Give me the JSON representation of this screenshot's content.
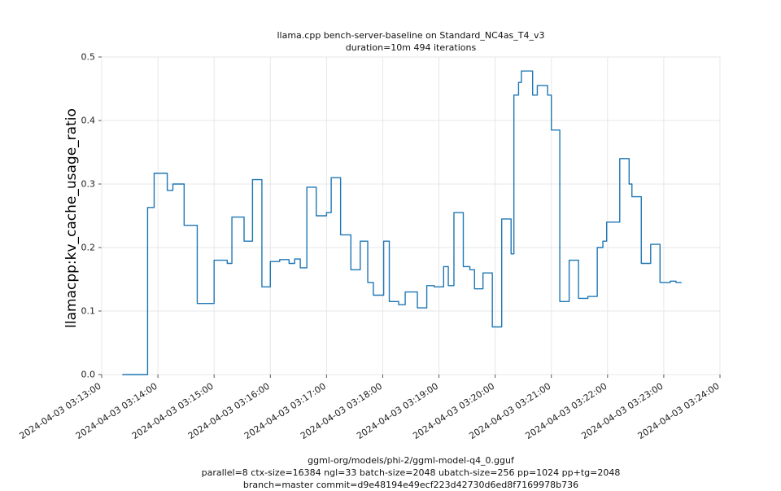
{
  "header": {
    "title_line1": "llama.cpp bench-server-baseline on Standard_NC4as_T4_v3",
    "title_line2": "duration=10m 494 iterations"
  },
  "footer": {
    "line1": "ggml-org/models/phi-2/ggml-model-q4_0.gguf",
    "line2": "parallel=8 ctx-size=16384 ngl=33 batch-size=2048 ubatch-size=256 pp=1024 pp+tg=2048",
    "line3": "branch=master commit=d9e48194e49ecf223d42730d6ed8f7169978b736"
  },
  "chart_data": {
    "type": "line",
    "step": true,
    "title": "llama.cpp bench-server-baseline on Standard_NC4as_T4_v3",
    "subtitle": "duration=10m 494 iterations",
    "ylabel": "llamacpp:kv_cache_usage_ratio",
    "xlabel": "",
    "ylim": [
      0.0,
      0.5
    ],
    "yticks": [
      0.0,
      0.1,
      0.2,
      0.3,
      0.4,
      0.5
    ],
    "x_domain_seconds": [
      0,
      660
    ],
    "xtick_interval_seconds": 60,
    "xtick_labels": [
      "2024-04-03 03:13:00",
      "2024-04-03 03:14:00",
      "2024-04-03 03:15:00",
      "2024-04-03 03:16:00",
      "2024-04-03 03:17:00",
      "2024-04-03 03:18:00",
      "2024-04-03 03:19:00",
      "2024-04-03 03:20:00",
      "2024-04-03 03:21:00",
      "2024-04-03 03:22:00",
      "2024-04-03 03:23:00",
      "2024-04-03 03:24:00"
    ],
    "grid": true,
    "grid_color": "#e7e7e7",
    "line_color": "#1f77b4",
    "tick_color": "#555555",
    "label_color": "#222222",
    "legend_position": "none",
    "points": [
      [
        22,
        0.0
      ],
      [
        49,
        0.263
      ],
      [
        56,
        0.317
      ],
      [
        70,
        0.29
      ],
      [
        76,
        0.3
      ],
      [
        88,
        0.235
      ],
      [
        102,
        0.112
      ],
      [
        120,
        0.18
      ],
      [
        134,
        0.175
      ],
      [
        139,
        0.248
      ],
      [
        152,
        0.21
      ],
      [
        161,
        0.307
      ],
      [
        171,
        0.138
      ],
      [
        180,
        0.178
      ],
      [
        190,
        0.181
      ],
      [
        200,
        0.175
      ],
      [
        206,
        0.182
      ],
      [
        212,
        0.168
      ],
      [
        219,
        0.295
      ],
      [
        229,
        0.25
      ],
      [
        240,
        0.255
      ],
      [
        245,
        0.31
      ],
      [
        255,
        0.22
      ],
      [
        266,
        0.165
      ],
      [
        276,
        0.21
      ],
      [
        284,
        0.145
      ],
      [
        290,
        0.125
      ],
      [
        301,
        0.21
      ],
      [
        307,
        0.115
      ],
      [
        317,
        0.11
      ],
      [
        324,
        0.13
      ],
      [
        337,
        0.105
      ],
      [
        347,
        0.14
      ],
      [
        355,
        0.138
      ],
      [
        365,
        0.17
      ],
      [
        370,
        0.14
      ],
      [
        376,
        0.255
      ],
      [
        386,
        0.17
      ],
      [
        393,
        0.165
      ],
      [
        398,
        0.135
      ],
      [
        407,
        0.16
      ],
      [
        417,
        0.075
      ],
      [
        427,
        0.245
      ],
      [
        437,
        0.19
      ],
      [
        440,
        0.44
      ],
      [
        445,
        0.46
      ],
      [
        448,
        0.478
      ],
      [
        460,
        0.44
      ],
      [
        465,
        0.455
      ],
      [
        476,
        0.44
      ],
      [
        480,
        0.385
      ],
      [
        489,
        0.115
      ],
      [
        499,
        0.18
      ],
      [
        509,
        0.12
      ],
      [
        519,
        0.123
      ],
      [
        529,
        0.2
      ],
      [
        535,
        0.21
      ],
      [
        539,
        0.24
      ],
      [
        553,
        0.34
      ],
      [
        563,
        0.3
      ],
      [
        566,
        0.28
      ],
      [
        576,
        0.175
      ],
      [
        586,
        0.205
      ],
      [
        596,
        0.145
      ],
      [
        607,
        0.147
      ],
      [
        613,
        0.145
      ]
    ]
  }
}
